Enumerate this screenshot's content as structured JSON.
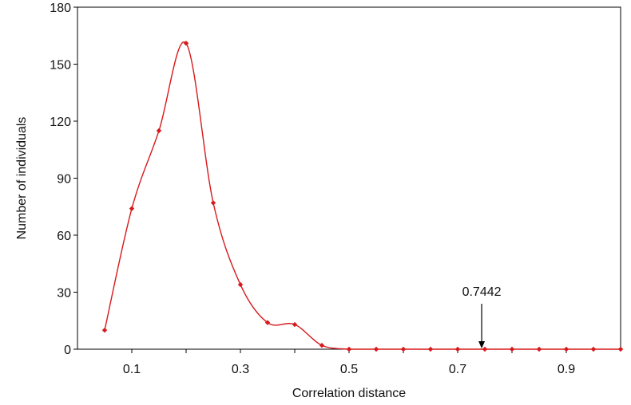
{
  "chart_data": {
    "type": "line",
    "title": "",
    "xlabel": "Correlation distance",
    "ylabel": "Number of individuals",
    "xlim": [
      0,
      1
    ],
    "ylim": [
      0,
      180
    ],
    "x_tick_labels": [
      "0.1",
      "0.3",
      "0.5",
      "0.7",
      "0.9"
    ],
    "x_tick_values": [
      0.1,
      0.3,
      0.5,
      0.7,
      0.9
    ],
    "y_tick_labels": [
      "0",
      "30",
      "60",
      "90",
      "120",
      "150",
      "180"
    ],
    "y_tick_values": [
      0,
      30,
      60,
      90,
      120,
      150,
      180
    ],
    "grid": false,
    "legend": "none",
    "series": [
      {
        "color": "#d7191c",
        "smooth": true,
        "x": [
          0.05,
          0.1,
          0.15,
          0.2,
          0.25,
          0.3,
          0.35,
          0.4,
          0.45,
          0.5,
          0.55,
          0.6,
          0.65,
          0.7,
          0.75,
          0.8,
          0.85,
          0.9,
          0.95,
          1.0
        ],
        "y": [
          10,
          74,
          115,
          161,
          77,
          34,
          14,
          13,
          2,
          0,
          0,
          0,
          0,
          0,
          0,
          0,
          0,
          0,
          0,
          0
        ]
      }
    ],
    "annotation": {
      "text": "0.7442",
      "x": 0.7442
    }
  }
}
